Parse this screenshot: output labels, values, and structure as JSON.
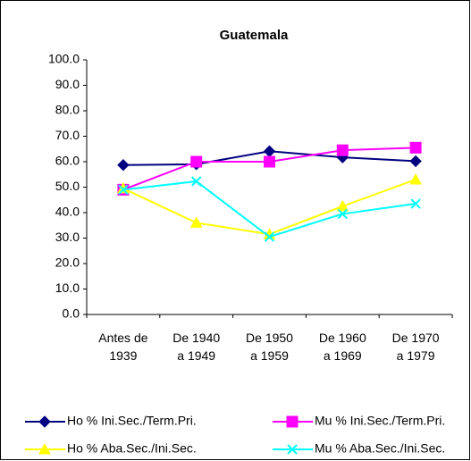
{
  "chart_data": {
    "type": "line",
    "title": "Guatemala",
    "categories": [
      "Antes de\n1939",
      "De 1940\na 1949",
      "De 1950\na 1959",
      "De 1960\na 1969",
      "De 1970\na 1979"
    ],
    "series": [
      {
        "name": "Ho % Ini.Sec./Term.Pri.",
        "color": "#000080",
        "marker": "diamond",
        "values": [
          58.7,
          59.0,
          64.1,
          61.7,
          60.2
        ]
      },
      {
        "name": "Mu % Ini.Sec./Term.Pri.",
        "color": "#ff00ff",
        "marker": "square",
        "values": [
          49.0,
          60.0,
          60.0,
          64.5,
          65.5
        ]
      },
      {
        "name": "Ho % Aba.Sec./Ini.Sec.",
        "color": "#ffff00",
        "marker": "triangle",
        "values": [
          49.5,
          36.0,
          31.5,
          42.5,
          53.0
        ]
      },
      {
        "name": "Mu % Aba.Sec./Ini.Sec.",
        "color": "#00ffff",
        "marker": "x",
        "values": [
          49.0,
          52.3,
          30.5,
          39.5,
          43.5
        ]
      }
    ],
    "ylim": [
      0,
      100
    ],
    "yticks": [
      {
        "value": 0,
        "label": "0.0"
      },
      {
        "value": 10,
        "label": "10.0"
      },
      {
        "value": 20,
        "label": "20.0"
      },
      {
        "value": 30,
        "label": "30.0"
      },
      {
        "value": 40,
        "label": "40.0"
      },
      {
        "value": 50,
        "label": "50.0"
      },
      {
        "value": 60,
        "label": "60.0"
      },
      {
        "value": 70,
        "label": "70.0"
      },
      {
        "value": 80,
        "label": "80.0"
      },
      {
        "value": 90,
        "label": "90.0"
      },
      {
        "value": 100,
        "label": "100.0"
      }
    ],
    "legend": "bottom"
  }
}
